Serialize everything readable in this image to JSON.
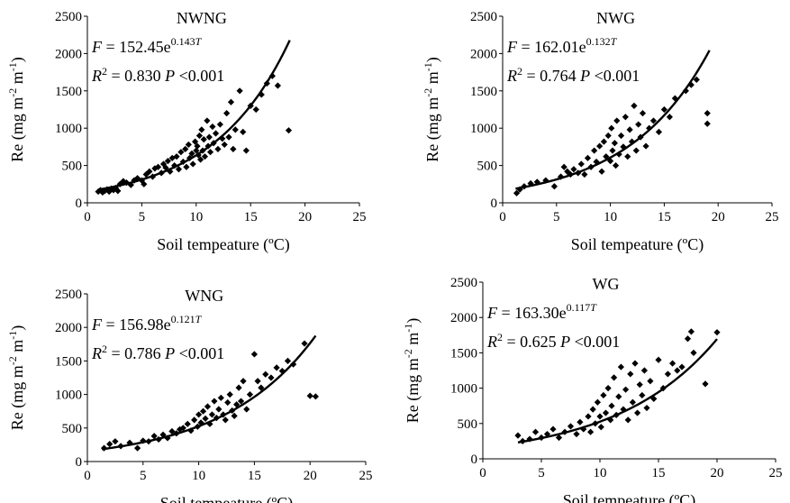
{
  "chart_data": [
    {
      "type": "scatter",
      "title": "NWNG",
      "equation": {
        "prefix": "F",
        "main": " = 152.45e",
        "exp_num": "0.143",
        "exp_var": "T"
      },
      "stats": {
        "r2": " = 0.830 ",
        "p": "<0.001"
      },
      "xlabel": "Soil tempeature (ºC)",
      "ylabel": "Re (mg m-2 m-1)",
      "xlim": [
        0,
        25
      ],
      "ylim": [
        0,
        2500
      ],
      "xticks": [
        "0",
        "5",
        "10",
        "15",
        "20",
        "25"
      ],
      "yticks": [
        "0",
        "500",
        "1000",
        "1500",
        "2000",
        "2500"
      ],
      "fit": {
        "a": 152.45,
        "b": 0.143,
        "x_range": [
          1,
          18.6
        ]
      },
      "points": [
        [
          1.0,
          150
        ],
        [
          1.2,
          170
        ],
        [
          1.4,
          140
        ],
        [
          1.6,
          160
        ],
        [
          1.8,
          180
        ],
        [
          2.0,
          150
        ],
        [
          2.2,
          190
        ],
        [
          2.4,
          170
        ],
        [
          2.6,
          200
        ],
        [
          2.8,
          160
        ],
        [
          3.0,
          250
        ],
        [
          3.3,
          290
        ],
        [
          3.6,
          270
        ],
        [
          4.0,
          240
        ],
        [
          4.3,
          300
        ],
        [
          4.6,
          330
        ],
        [
          5.0,
          300
        ],
        [
          5.2,
          250
        ],
        [
          5.4,
          380
        ],
        [
          5.7,
          420
        ],
        [
          6.0,
          350
        ],
        [
          6.2,
          460
        ],
        [
          6.5,
          480
        ],
        [
          6.8,
          400
        ],
        [
          7.0,
          520
        ],
        [
          7.2,
          470
        ],
        [
          7.4,
          560
        ],
        [
          7.6,
          420
        ],
        [
          7.8,
          600
        ],
        [
          8.0,
          500
        ],
        [
          8.2,
          620
        ],
        [
          8.4,
          450
        ],
        [
          8.6,
          680
        ],
        [
          8.8,
          550
        ],
        [
          9.0,
          720
        ],
        [
          9.1,
          480
        ],
        [
          9.3,
          780
        ],
        [
          9.4,
          600
        ],
        [
          9.6,
          660
        ],
        [
          9.7,
          520
        ],
        [
          9.9,
          820
        ],
        [
          10.0,
          700
        ],
        [
          10.1,
          760
        ],
        [
          10.2,
          640
        ],
        [
          10.3,
          900
        ],
        [
          10.4,
          580
        ],
        [
          10.5,
          980
        ],
        [
          10.6,
          700
        ],
        [
          10.7,
          850
        ],
        [
          10.8,
          620
        ],
        [
          11.0,
          1100
        ],
        [
          11.1,
          760
        ],
        [
          11.2,
          880
        ],
        [
          11.3,
          680
        ],
        [
          11.5,
          1020
        ],
        [
          11.6,
          800
        ],
        [
          11.8,
          930
        ],
        [
          12.0,
          720
        ],
        [
          12.2,
          1050
        ],
        [
          12.4,
          860
        ],
        [
          12.6,
          780
        ],
        [
          12.8,
          1200
        ],
        [
          13.0,
          880
        ],
        [
          13.2,
          1350
        ],
        [
          13.4,
          720
        ],
        [
          13.6,
          980
        ],
        [
          14.0,
          1500
        ],
        [
          14.3,
          950
        ],
        [
          14.6,
          700
        ],
        [
          15.0,
          1300
        ],
        [
          15.5,
          1250
        ],
        [
          16.0,
          1450
        ],
        [
          16.5,
          1600
        ],
        [
          17.0,
          1700
        ],
        [
          17.5,
          1570
        ],
        [
          18.5,
          970
        ]
      ]
    },
    {
      "type": "scatter",
      "title": "NWG",
      "equation": {
        "prefix": "F",
        "main": " = 162.01e",
        "exp_num": "0.132",
        "exp_var": "T"
      },
      "stats": {
        "r2": " = 0.764 ",
        "p": "<0.001"
      },
      "xlabel": "Soil tempeature (ºC)",
      "ylabel": "Re (mg m-2 m-1)",
      "xlim": [
        0,
        25
      ],
      "ylim": [
        0,
        2500
      ],
      "xticks": [
        "0",
        "5",
        "10",
        "15",
        "20",
        "25"
      ],
      "yticks": [
        "0",
        "500",
        "1000",
        "1500",
        "2000",
        "2500"
      ],
      "fit": {
        "a": 162.01,
        "b": 0.132,
        "x_range": [
          1.2,
          19.2
        ]
      },
      "points": [
        [
          1.3,
          130
        ],
        [
          1.6,
          180
        ],
        [
          2.0,
          220
        ],
        [
          2.6,
          260
        ],
        [
          3.2,
          280
        ],
        [
          4.0,
          300
        ],
        [
          4.8,
          220
        ],
        [
          5.4,
          350
        ],
        [
          5.7,
          480
        ],
        [
          6.0,
          420
        ],
        [
          6.3,
          380
        ],
        [
          6.6,
          450
        ],
        [
          7.0,
          400
        ],
        [
          7.3,
          520
        ],
        [
          7.6,
          380
        ],
        [
          7.9,
          600
        ],
        [
          8.2,
          480
        ],
        [
          8.5,
          700
        ],
        [
          8.7,
          550
        ],
        [
          9.0,
          760
        ],
        [
          9.2,
          420
        ],
        [
          9.4,
          820
        ],
        [
          9.6,
          620
        ],
        [
          9.8,
          900
        ],
        [
          10.0,
          560
        ],
        [
          10.1,
          1000
        ],
        [
          10.2,
          700
        ],
        [
          10.4,
          800
        ],
        [
          10.5,
          500
        ],
        [
          10.6,
          1100
        ],
        [
          10.8,
          650
        ],
        [
          11.0,
          900
        ],
        [
          11.2,
          750
        ],
        [
          11.4,
          1150
        ],
        [
          11.6,
          620
        ],
        [
          11.8,
          980
        ],
        [
          12.0,
          820
        ],
        [
          12.2,
          1300
        ],
        [
          12.4,
          700
        ],
        [
          12.6,
          1050
        ],
        [
          12.8,
          880
        ],
        [
          13.0,
          1200
        ],
        [
          13.3,
          760
        ],
        [
          13.6,
          1000
        ],
        [
          14.0,
          1100
        ],
        [
          14.5,
          950
        ],
        [
          15.0,
          1250
        ],
        [
          15.5,
          1150
        ],
        [
          16.0,
          1400
        ],
        [
          17.0,
          1500
        ],
        [
          17.5,
          1580
        ],
        [
          18.0,
          1650
        ],
        [
          19.0,
          1200
        ],
        [
          19.0,
          1060
        ]
      ]
    },
    {
      "type": "scatter",
      "title": "WNG",
      "equation": {
        "prefix": "F",
        "main": " = 156.98e",
        "exp_num": "0.121",
        "exp_var": "T"
      },
      "stats": {
        "r2": " = 0.786 ",
        "p": "<0.001"
      },
      "xlabel": "Soil tempeature (ºC)",
      "ylabel": "Re (mg m-2 m-1)",
      "xlim": [
        0,
        25
      ],
      "ylim": [
        0,
        2500
      ],
      "xticks": [
        "0",
        "5",
        "10",
        "15",
        "20",
        "25"
      ],
      "yticks": [
        "0",
        "500",
        "1000",
        "1500",
        "2000",
        "2500"
      ],
      "fit": {
        "a": 156.98,
        "b": 0.121,
        "x_range": [
          1.3,
          20.5
        ]
      },
      "points": [
        [
          1.5,
          200
        ],
        [
          2.0,
          260
        ],
        [
          2.5,
          300
        ],
        [
          3.0,
          230
        ],
        [
          3.8,
          280
        ],
        [
          4.5,
          200
        ],
        [
          5.0,
          310
        ],
        [
          5.5,
          300
        ],
        [
          6.0,
          380
        ],
        [
          6.4,
          330
        ],
        [
          6.8,
          400
        ],
        [
          7.2,
          350
        ],
        [
          7.6,
          450
        ],
        [
          8.0,
          420
        ],
        [
          8.3,
          480
        ],
        [
          8.6,
          500
        ],
        [
          9.0,
          560
        ],
        [
          9.3,
          460
        ],
        [
          9.6,
          620
        ],
        [
          9.9,
          520
        ],
        [
          10.0,
          700
        ],
        [
          10.2,
          580
        ],
        [
          10.4,
          750
        ],
        [
          10.6,
          640
        ],
        [
          10.8,
          820
        ],
        [
          11.0,
          560
        ],
        [
          11.2,
          700
        ],
        [
          11.4,
          900
        ],
        [
          11.6,
          650
        ],
        [
          11.8,
          780
        ],
        [
          12.0,
          950
        ],
        [
          12.2,
          700
        ],
        [
          12.4,
          620
        ],
        [
          12.6,
          880
        ],
        [
          12.8,
          1000
        ],
        [
          13.0,
          760
        ],
        [
          13.2,
          680
        ],
        [
          13.4,
          850
        ],
        [
          13.6,
          1100
        ],
        [
          13.8,
          900
        ],
        [
          14.0,
          1200
        ],
        [
          14.3,
          780
        ],
        [
          14.6,
          1000
        ],
        [
          15.0,
          1600
        ],
        [
          15.3,
          1200
        ],
        [
          15.6,
          1100
        ],
        [
          16.0,
          1300
        ],
        [
          16.5,
          1250
        ],
        [
          17.0,
          1400
        ],
        [
          17.5,
          1350
        ],
        [
          18.0,
          1500
        ],
        [
          18.5,
          1450
        ],
        [
          19.5,
          1760
        ],
        [
          20.0,
          980
        ],
        [
          20.5,
          970
        ]
      ]
    },
    {
      "type": "scatter",
      "title": "WG",
      "equation": {
        "prefix": "F",
        "main": " = 163.30e",
        "exp_num": "0.117",
        "exp_var": "T"
      },
      "stats": {
        "r2": " = 0.625 ",
        "p": "<0.001"
      },
      "xlabel": "Soil tempeature (ºC)",
      "ylabel": "Re (mg m-2 m-1)",
      "xlim": [
        0,
        25
      ],
      "ylim": [
        0,
        2500
      ],
      "xticks": [
        "0",
        "5",
        "10",
        "15",
        "20",
        "25"
      ],
      "yticks": [
        "0",
        "500",
        "1000",
        "1500",
        "2000",
        "2500"
      ],
      "fit": {
        "a": 163.3,
        "b": 0.117,
        "x_range": [
          3,
          20
        ]
      },
      "points": [
        [
          3.0,
          330
        ],
        [
          3.4,
          250
        ],
        [
          4.0,
          280
        ],
        [
          4.5,
          380
        ],
        [
          5.0,
          300
        ],
        [
          5.5,
          350
        ],
        [
          6.0,
          420
        ],
        [
          6.5,
          300
        ],
        [
          7.0,
          380
        ],
        [
          7.5,
          460
        ],
        [
          8.0,
          350
        ],
        [
          8.3,
          520
        ],
        [
          8.6,
          420
        ],
        [
          9.0,
          600
        ],
        [
          9.2,
          380
        ],
        [
          9.4,
          700
        ],
        [
          9.6,
          500
        ],
        [
          9.8,
          800
        ],
        [
          10.0,
          600
        ],
        [
          10.1,
          450
        ],
        [
          10.3,
          900
        ],
        [
          10.5,
          650
        ],
        [
          10.7,
          1000
        ],
        [
          10.9,
          550
        ],
        [
          11.0,
          750
        ],
        [
          11.2,
          1150
        ],
        [
          11.4,
          620
        ],
        [
          11.6,
          880
        ],
        [
          11.8,
          1300
        ],
        [
          12.0,
          700
        ],
        [
          12.2,
          980
        ],
        [
          12.4,
          550
        ],
        [
          12.6,
          1200
        ],
        [
          12.8,
          800
        ],
        [
          13.0,
          1350
        ],
        [
          13.2,
          650
        ],
        [
          13.4,
          1050
        ],
        [
          13.6,
          900
        ],
        [
          13.8,
          1250
        ],
        [
          14.0,
          720
        ],
        [
          14.3,
          1100
        ],
        [
          14.6,
          850
        ],
        [
          15.0,
          1400
        ],
        [
          15.4,
          1000
        ],
        [
          15.8,
          1200
        ],
        [
          16.2,
          1350
        ],
        [
          16.6,
          1250
        ],
        [
          17.0,
          1300
        ],
        [
          17.5,
          1700
        ],
        [
          17.8,
          1800
        ],
        [
          18.0,
          1500
        ],
        [
          19.0,
          1060
        ],
        [
          20.0,
          1790
        ]
      ]
    }
  ]
}
